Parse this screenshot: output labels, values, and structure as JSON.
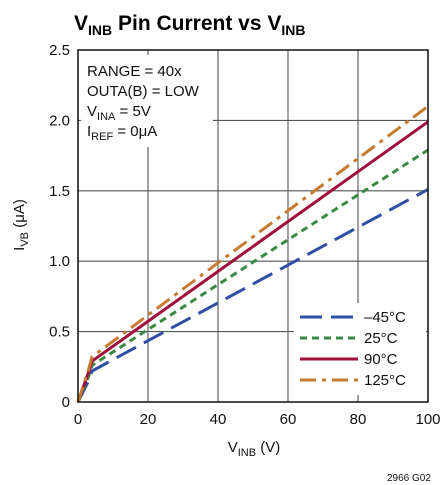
{
  "chart_data": {
    "type": "line",
    "title": {
      "main": "V",
      "sub": "INB",
      "mid": " Pin Current vs V",
      "sub2": "INB"
    },
    "xlabel": {
      "main": "V",
      "sub": "INB",
      "rest": " (V)"
    },
    "ylabel": {
      "main": "I",
      "sub": "VB",
      "rest": " (μA)"
    },
    "xlim": [
      0,
      100
    ],
    "ylim": [
      0,
      2.5
    ],
    "xticks": [
      0,
      20,
      40,
      60,
      80,
      100
    ],
    "yticks": [
      0,
      0.5,
      1.0,
      1.5,
      2.0,
      2.5
    ],
    "xtick_labels": [
      "0",
      "20",
      "40",
      "60",
      "80",
      "100"
    ],
    "ytick_labels": [
      "0",
      "0.5",
      "1.0",
      "1.5",
      "2.0",
      "2.5"
    ],
    "grid": true,
    "legend_position": "bottom-right",
    "annotations": [
      {
        "main": "RANGE = 40x"
      },
      {
        "main": "OUTA(B) = LOW"
      },
      {
        "main": "V",
        "sub": "INA",
        "rest": " = 5V"
      },
      {
        "main": "I",
        "sub": "REF",
        "rest": " = 0μA"
      }
    ],
    "series": [
      {
        "name": "–45°C",
        "color": "#2e4fa3",
        "dash": "long-dash",
        "x": [
          0,
          3,
          4,
          100
        ],
        "y": [
          0,
          0.15,
          0.22,
          1.51
        ]
      },
      {
        "name": "25°C",
        "color": "#3a8a45",
        "dash": "short-dash",
        "x": [
          0,
          3,
          4,
          100
        ],
        "y": [
          0,
          0.18,
          0.26,
          1.79
        ]
      },
      {
        "name": "90°C",
        "color": "#a0103a",
        "dash": "solid",
        "x": [
          0,
          3,
          4,
          100
        ],
        "y": [
          0,
          0.21,
          0.29,
          1.99
        ]
      },
      {
        "name": "125°C",
        "color": "#c87a30",
        "dash": "dash-dot",
        "x": [
          0,
          3,
          4,
          100
        ],
        "y": [
          0,
          0.23,
          0.32,
          2.1
        ]
      }
    ],
    "figure_code": "2966 G02"
  }
}
